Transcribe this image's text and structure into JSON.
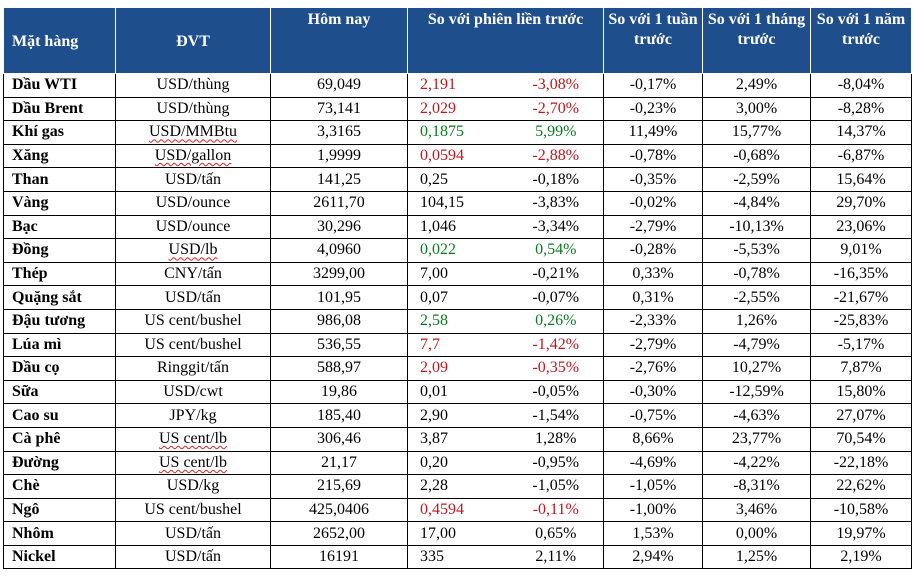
{
  "header": {
    "item": "Mặt hàng",
    "unit": "ĐVT",
    "today": "Hôm nay",
    "vs_prev": "So với phiên liền trước",
    "vs_week": "So với 1 tuần trước",
    "vs_month": "So với 1 tháng trước",
    "vs_year": "So với 1 năm trước"
  },
  "colors": {
    "header_bg": "#1f4e8c",
    "up": "#0a7a1e",
    "down": "#c0161d"
  },
  "rows": [
    {
      "item": "Dầu WTI",
      "unit": "USD/thùng",
      "today": "69,049",
      "chg": "2,191",
      "pct": "-3,08%",
      "week": "-0,17%",
      "month": "2,49%",
      "year": "-8,04%",
      "color": "red",
      "squiggle": false
    },
    {
      "item": "Dầu Brent",
      "unit": "USD/thùng",
      "today": "73,141",
      "chg": "2,029",
      "pct": "-2,70%",
      "week": "-0,23%",
      "month": "3,00%",
      "year": "-8,28%",
      "color": "red",
      "squiggle": false
    },
    {
      "item": "Khí gas",
      "unit": "USD/MMBtu",
      "today": "3,3165",
      "chg": "0,1875",
      "pct": "5,99%",
      "week": "11,49%",
      "month": "15,77%",
      "year": "14,37%",
      "color": "green",
      "squiggle": true
    },
    {
      "item": "Xăng",
      "unit": "USD/gallon",
      "today": "1,9999",
      "chg": "0,0594",
      "pct": "-2,88%",
      "week": "-0,78%",
      "month": "-0,68%",
      "year": "-6,87%",
      "color": "red",
      "squiggle": true
    },
    {
      "item": "Than",
      "unit": "USD/tấn",
      "today": "141,25",
      "chg": "0,25",
      "pct": "-0,18%",
      "week": "-0,35%",
      "month": "-2,59%",
      "year": "15,64%",
      "color": "black",
      "squiggle": false
    },
    {
      "item": "Vàng",
      "unit": "USD/ounce",
      "today": "2611,70",
      "chg": "104,15",
      "pct": "-3,83%",
      "week": "-0,02%",
      "month": "-4,84%",
      "year": "29,70%",
      "color": "black",
      "squiggle": false
    },
    {
      "item": "Bạc",
      "unit": "USD/ounce",
      "today": "30,296",
      "chg": "1,046",
      "pct": "-3,34%",
      "week": "-2,79%",
      "month": "-10,13%",
      "year": "23,06%",
      "color": "black",
      "squiggle": false
    },
    {
      "item": "Đồng",
      "unit": "USD/lb",
      "today": "4,0960",
      "chg": "0,022",
      "pct": "0,54%",
      "week": "-0,28%",
      "month": "-5,53%",
      "year": "9,01%",
      "color": "green",
      "squiggle": true
    },
    {
      "item": "Thép",
      "unit": "CNY/tấn",
      "today": "3299,00",
      "chg": "7,00",
      "pct": "-0,21%",
      "week": "0,33%",
      "month": "-0,78%",
      "year": "-16,35%",
      "color": "black",
      "squiggle": false
    },
    {
      "item": "Quặng sắt",
      "unit": "USD/tấn",
      "today": "101,95",
      "chg": "0,07",
      "pct": "-0,07%",
      "week": "0,31%",
      "month": "-2,55%",
      "year": "-21,67%",
      "color": "black",
      "squiggle": false
    },
    {
      "item": "Đậu tương",
      "unit": "US cent/bushel",
      "today": "986,08",
      "chg": "2,58",
      "pct": "0,26%",
      "week": "-2,33%",
      "month": "1,26%",
      "year": "-25,83%",
      "color": "green",
      "squiggle": false
    },
    {
      "item": "Lúa mì",
      "unit": "US cent/bushel",
      "today": "536,55",
      "chg": "7,7",
      "pct": "-1,42%",
      "week": "-2,79%",
      "month": "-4,79%",
      "year": "-5,17%",
      "color": "red",
      "squiggle": false
    },
    {
      "item": "Dầu cọ",
      "unit": "Ringgit/tấn",
      "today": "588,97",
      "chg": "2,09",
      "pct": "-0,35%",
      "week": "-2,76%",
      "month": "10,27%",
      "year": "7,87%",
      "color": "red",
      "squiggle": false
    },
    {
      "item": "Sữa",
      "unit": "USD/cwt",
      "today": "19,86",
      "chg": "0,01",
      "pct": "-0,05%",
      "week": "-0,30%",
      "month": "-12,59%",
      "year": "15,80%",
      "color": "black",
      "squiggle": false
    },
    {
      "item": "Cao su",
      "unit": "JPY/kg",
      "today": "185,40",
      "chg": "2,90",
      "pct": "-1,54%",
      "week": "-0,75%",
      "month": "-4,63%",
      "year": "27,07%",
      "color": "black",
      "squiggle": false
    },
    {
      "item": "Cà phê",
      "unit": "US cent/lb",
      "today": "306,46",
      "chg": "3,87",
      "pct": "1,28%",
      "week": "8,66%",
      "month": "23,77%",
      "year": "70,54%",
      "color": "black",
      "squiggle": true
    },
    {
      "item": "Đường",
      "unit": "US cent/lb",
      "today": "21,17",
      "chg": "0,20",
      "pct": "-0,95%",
      "week": "-4,69%",
      "month": "-4,22%",
      "year": "-22,18%",
      "color": "black",
      "squiggle": true
    },
    {
      "item": "Chè",
      "unit": "USD/kg",
      "today": "215,69",
      "chg": "2,28",
      "pct": "-1,05%",
      "week": "-1,05%",
      "month": "-8,31%",
      "year": "22,62%",
      "color": "black",
      "squiggle": false
    },
    {
      "item": "Ngô",
      "unit": "US cent/bushel",
      "today": "425,0406",
      "chg": "0,4594",
      "pct": "-0,11%",
      "week": "-1,00%",
      "month": "3,46%",
      "year": "-10,58%",
      "color": "red",
      "squiggle": false
    },
    {
      "item": "Nhôm",
      "unit": "USD/tấn",
      "today": "2652,00",
      "chg": "17,00",
      "pct": "0,65%",
      "week": "1,53%",
      "month": "0,00%",
      "year": "19,97%",
      "color": "black",
      "squiggle": false
    },
    {
      "item": "Nickel",
      "unit": "USD/tấn",
      "today": "16191",
      "chg": "335",
      "pct": "2,11%",
      "week": "2,94%",
      "month": "1,25%",
      "year": "2,19%",
      "color": "black",
      "squiggle": false
    }
  ]
}
